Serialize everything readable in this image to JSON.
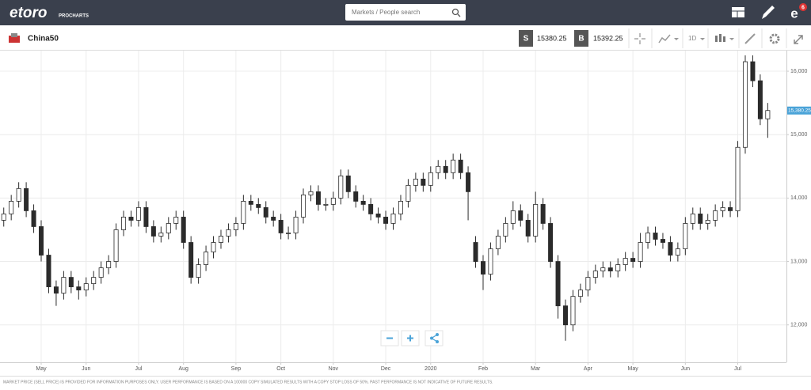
{
  "header": {
    "logo": "etoro",
    "logo_sub": "PROCHARTS",
    "search_placeholder": "Markets / People search",
    "notification_count": 6
  },
  "instrument": {
    "name": "China50",
    "sell_label": "S",
    "sell_price": 15380.25,
    "buy_label": "B",
    "buy_price": 15392.25,
    "timeframe": "1D"
  },
  "chart_data": {
    "type": "candlestick",
    "x": [
      0,
      1,
      2,
      3,
      4,
      5,
      6,
      7,
      8,
      9,
      10,
      11,
      12,
      13,
      14,
      15,
      16,
      17,
      18,
      19,
      20,
      21,
      22,
      23,
      24,
      25,
      26,
      27,
      28,
      29,
      30,
      31,
      32,
      33,
      34,
      35,
      36,
      37,
      38,
      39,
      40,
      41,
      42,
      43,
      44,
      45,
      46,
      47,
      48,
      49,
      50,
      51,
      52,
      53,
      54,
      55,
      56,
      57,
      58,
      59,
      60,
      61,
      62,
      63,
      64,
      65,
      66,
      67,
      68,
      69,
      70,
      71,
      72,
      73,
      74,
      75,
      76,
      77,
      78,
      79,
      80,
      81,
      82,
      83,
      84,
      85,
      86,
      87,
      88,
      89,
      90,
      91,
      92,
      93,
      94,
      95,
      96,
      97,
      98,
      99,
      100,
      101,
      102
    ],
    "open": [
      13650,
      13750,
      13950,
      14150,
      13800,
      13550,
      13100,
      12600,
      12500,
      12750,
      12600,
      12550,
      12650,
      12750,
      12900,
      13000,
      13500,
      13700,
      13650,
      13850,
      13550,
      13400,
      13450,
      13600,
      13700,
      13300,
      12750,
      12950,
      13150,
      13300,
      13400,
      13500,
      13600,
      13950,
      13900,
      13850,
      13700,
      13650,
      13450,
      13450,
      13700,
      14050,
      14100,
      13900,
      13900,
      14000,
      14350,
      14100,
      13950,
      13900,
      13750,
      13700,
      13600,
      13750,
      13950,
      14200,
      14300,
      14200,
      14400,
      14500,
      14400,
      14600,
      14400,
      13300,
      13000,
      12800,
      13200,
      13400,
      13600,
      13800,
      13650,
      13400,
      13900,
      13600,
      13000,
      12300,
      12000,
      12450,
      12550,
      12750,
      12850,
      12900,
      12850,
      12950,
      13050,
      13000,
      13300,
      13450,
      13350,
      13300,
      13100,
      13200,
      13600,
      13750,
      13600,
      13650,
      13800,
      13850,
      13800,
      14800,
      16150,
      15850,
      15250
    ],
    "high": [
      13850,
      14050,
      14250,
      14250,
      13900,
      13650,
      13200,
      12700,
      12850,
      12850,
      12700,
      12750,
      12850,
      13000,
      13100,
      13600,
      13800,
      13800,
      13950,
      13950,
      13650,
      13550,
      13700,
      13800,
      13800,
      13400,
      13050,
      13250,
      13400,
      13500,
      13600,
      13700,
      14050,
      14050,
      14000,
      13950,
      13800,
      13750,
      13550,
      13800,
      14150,
      14200,
      14200,
      14000,
      14100,
      14450,
      14450,
      14200,
      14050,
      14000,
      13850,
      13800,
      13850,
      14050,
      14300,
      14400,
      14400,
      14500,
      14600,
      14600,
      14700,
      14700,
      14500,
      13400,
      13100,
      13300,
      13500,
      13700,
      13950,
      13900,
      13750,
      14100,
      14000,
      13700,
      13100,
      12400,
      12550,
      12650,
      12850,
      12950,
      13000,
      13000,
      13050,
      13150,
      13150,
      13450,
      13550,
      13550,
      13450,
      13400,
      13300,
      13700,
      13850,
      13850,
      13750,
      13900,
      13950,
      13950,
      14900,
      16250,
      16250,
      15950,
      15500
    ],
    "low": [
      13550,
      13650,
      13850,
      13700,
      13450,
      13000,
      12500,
      12300,
      12400,
      12500,
      12400,
      12450,
      12550,
      12650,
      12800,
      12900,
      13400,
      13550,
      13550,
      13450,
      13300,
      13300,
      13350,
      13500,
      13200,
      12650,
      12650,
      12850,
      13050,
      13200,
      13300,
      13400,
      13500,
      13800,
      13750,
      13600,
      13550,
      13350,
      13350,
      13350,
      13600,
      13950,
      13800,
      13800,
      13800,
      13900,
      14000,
      13850,
      13800,
      13650,
      13600,
      13500,
      13500,
      13650,
      13850,
      14100,
      14100,
      14100,
      14300,
      14300,
      14300,
      14300,
      13650,
      12900,
      12550,
      12700,
      13100,
      13300,
      13500,
      13550,
      13300,
      13300,
      13500,
      12900,
      12100,
      11750,
      11900,
      12350,
      12450,
      12650,
      12750,
      12750,
      12750,
      12850,
      12900,
      12900,
      13200,
      13250,
      13200,
      13000,
      13000,
      13100,
      13500,
      13500,
      13500,
      13550,
      13700,
      13700,
      13700,
      14700,
      15750,
      15150,
      14950
    ],
    "close": [
      13750,
      13950,
      14150,
      13800,
      13550,
      13100,
      12600,
      12500,
      12750,
      12600,
      12550,
      12650,
      12750,
      12900,
      13000,
      13500,
      13700,
      13650,
      13850,
      13550,
      13400,
      13450,
      13600,
      13700,
      13300,
      12750,
      12950,
      13150,
      13300,
      13400,
      13500,
      13600,
      13950,
      13900,
      13850,
      13700,
      13650,
      13450,
      13450,
      13700,
      14050,
      14100,
      13900,
      13900,
      14000,
      14350,
      14100,
      13950,
      13900,
      13750,
      13700,
      13600,
      13750,
      13950,
      14200,
      14300,
      14200,
      14400,
      14500,
      14400,
      14600,
      14400,
      14100,
      13000,
      12800,
      13200,
      13400,
      13600,
      13800,
      13650,
      13400,
      13900,
      13600,
      13000,
      12300,
      12000,
      12450,
      12550,
      12750,
      12850,
      12900,
      12850,
      12950,
      13050,
      13000,
      13300,
      13450,
      13350,
      13300,
      13100,
      13200,
      13600,
      13750,
      13600,
      13650,
      13800,
      13850,
      13800,
      14800,
      16150,
      15850,
      15250,
      15380.25
    ],
    "xlim": [
      -0.5,
      104.5
    ],
    "xticks": [
      {
        "value": 5,
        "label": "May"
      },
      {
        "value": 11,
        "label": "Jun"
      },
      {
        "value": 18,
        "label": "Jul"
      },
      {
        "value": 24,
        "label": "Aug"
      },
      {
        "value": 31,
        "label": "Sep"
      },
      {
        "value": 37,
        "label": "Oct"
      },
      {
        "value": 44,
        "label": "Nov"
      },
      {
        "value": 51,
        "label": "Dec"
      },
      {
        "value": 57,
        "label": "2020"
      },
      {
        "value": 64,
        "label": "Feb"
      },
      {
        "value": 71,
        "label": "Mar"
      },
      {
        "value": 78,
        "label": "Apr"
      },
      {
        "value": 84,
        "label": "May"
      },
      {
        "value": 91,
        "label": "Jun"
      },
      {
        "value": 98,
        "label": "Jul"
      }
    ],
    "ylim": [
      11410,
      16325
    ],
    "yticks": [
      {
        "value": 12000,
        "label": "12,000"
      },
      {
        "value": 13000,
        "label": "13,000"
      },
      {
        "value": 14000,
        "label": "14,000"
      },
      {
        "value": 15000,
        "label": "15,000"
      },
      {
        "value": 16000,
        "label": "16,000"
      }
    ],
    "grid": true,
    "up_color": "#ffffff",
    "down_color": "#2b2b2b",
    "wick_color": "#2b2b2b",
    "last_price": {
      "value": 15380.25,
      "label": "15,380.25"
    },
    "last_price_color": "#4aa3d8"
  },
  "footer": {
    "disclaimer": "MARKET PRICE (SELL PRICE) IS PROVIDED FOR INFORMATION PURPOSES ONLY. USER PERFORMANCE IS BASED ON A 100000 COPY SIMULATED RESULTS WITH A COPY STOP LOSS OF 50%. PAST PERFORMANCE IS NOT INDICATIVE OF FUTURE RESULTS."
  }
}
